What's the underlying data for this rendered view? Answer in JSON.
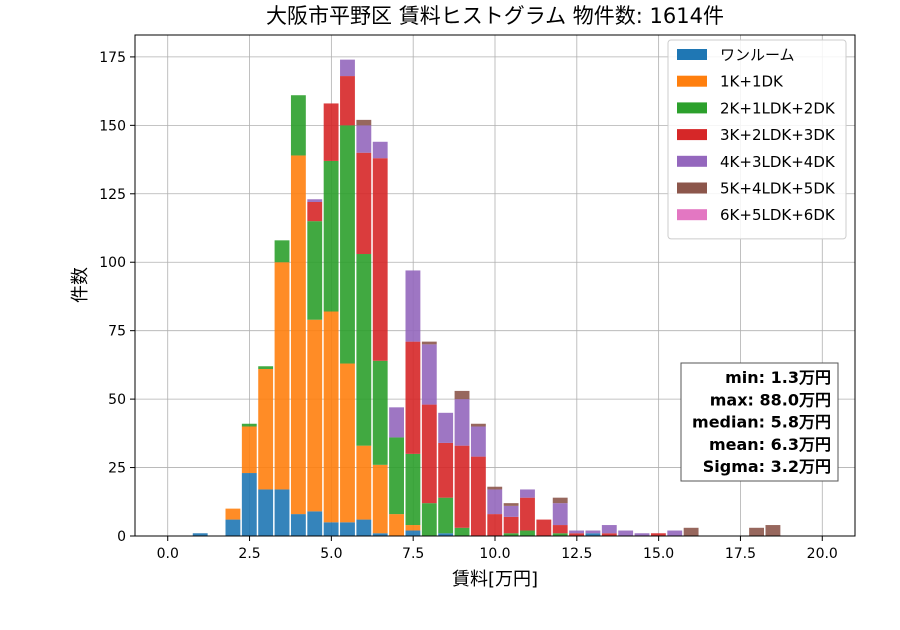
{
  "chart_data": {
    "type": "bar",
    "stacked": true,
    "title": "大阪市平野区 賃料ヒストグラム  物件数: 1614件",
    "xlabel": "賃料[万円]",
    "ylabel": "件数",
    "xlim": [
      -1.0,
      21.0
    ],
    "ylim": [
      0,
      183
    ],
    "xticks": [
      "0.0",
      "2.5",
      "5.0",
      "7.5",
      "10.0",
      "12.5",
      "15.0",
      "17.5",
      "20.0"
    ],
    "xtick_values": [
      0,
      2.5,
      5,
      7.5,
      10,
      12.5,
      15,
      17.5,
      20
    ],
    "yticks": [
      "0",
      "25",
      "50",
      "75",
      "100",
      "125",
      "150",
      "175"
    ],
    "ytick_values": [
      0,
      25,
      50,
      75,
      100,
      125,
      150,
      175
    ],
    "grid": true,
    "legend_position": "top-right",
    "bin_width": 0.5,
    "bin_starts": [
      0.75,
      1.25,
      1.75,
      2.25,
      2.75,
      3.25,
      3.75,
      4.25,
      4.75,
      5.25,
      5.75,
      6.25,
      6.75,
      7.25,
      7.75,
      8.25,
      8.75,
      9.25,
      9.75,
      10.25,
      10.75,
      11.25,
      11.75,
      12.25,
      12.75,
      13.25,
      13.75,
      14.25,
      14.75,
      15.25,
      15.75,
      16.25,
      16.75,
      17.25,
      17.75,
      18.25,
      18.75,
      19.25,
      19.75
    ],
    "series": [
      {
        "name": "ワンルーム",
        "color": "#1f77b4",
        "values": [
          1,
          0,
          6,
          23,
          17,
          17,
          8,
          9,
          5,
          5,
          6,
          1,
          0,
          2,
          0,
          1,
          0,
          0,
          0,
          0,
          0,
          0,
          0,
          0,
          1,
          0,
          0,
          0,
          0,
          0,
          0,
          0,
          0,
          0,
          0,
          0,
          0,
          0,
          0
        ]
      },
      {
        "name": "1K+1DK",
        "color": "#ff7f0e",
        "values": [
          0,
          0,
          4,
          17,
          44,
          83,
          131,
          70,
          77,
          58,
          27,
          25,
          8,
          2,
          0,
          0,
          0,
          0,
          0,
          0,
          0,
          0,
          0,
          0,
          0,
          0,
          0,
          0,
          0,
          0,
          0,
          0,
          0,
          0,
          0,
          0,
          0,
          0,
          0
        ]
      },
      {
        "name": "2K+1LDK+2DK",
        "color": "#2ca02c",
        "values": [
          0,
          0,
          0,
          1,
          1,
          8,
          22,
          36,
          55,
          87,
          70,
          38,
          28,
          26,
          12,
          13,
          3,
          0,
          0,
          1,
          2,
          0,
          1,
          0,
          0,
          0,
          0,
          0,
          0,
          0,
          0,
          0,
          0,
          0,
          0,
          0,
          0,
          0,
          0
        ]
      },
      {
        "name": "3K+2LDK+3DK",
        "color": "#d62728",
        "values": [
          0,
          0,
          0,
          0,
          0,
          0,
          0,
          7,
          21,
          18,
          37,
          74,
          0,
          41,
          36,
          20,
          30,
          29,
          8,
          6,
          12,
          6,
          3,
          1,
          0,
          1,
          0,
          0,
          1,
          0,
          0,
          0,
          0,
          0,
          0,
          0,
          0,
          0,
          0
        ]
      },
      {
        "name": "4K+3LDK+4DK",
        "color": "#9467bd",
        "values": [
          0,
          0,
          0,
          0,
          0,
          0,
          0,
          1,
          0,
          6,
          10,
          6,
          11,
          26,
          22,
          11,
          17,
          11,
          9,
          4,
          3,
          0,
          8,
          1,
          1,
          3,
          2,
          1,
          0,
          2,
          0,
          0,
          0,
          0,
          0,
          0,
          0,
          0,
          0
        ]
      },
      {
        "name": "5K+4LDK+5DK",
        "color": "#8c564b",
        "values": [
          0,
          0,
          0,
          0,
          0,
          0,
          0,
          0,
          0,
          0,
          2,
          0,
          0,
          0,
          1,
          0,
          3,
          1,
          1,
          1,
          0,
          0,
          2,
          0,
          0,
          0,
          0,
          0,
          0,
          0,
          3,
          0,
          0,
          0,
          3,
          4,
          0,
          0,
          0
        ]
      },
      {
        "name": "6K+5LDK+6DK",
        "color": "#e377c2",
        "values": [
          0,
          0,
          0,
          0,
          0,
          0,
          0,
          0,
          0,
          0,
          0,
          0,
          0,
          0,
          0,
          0,
          0,
          0,
          0,
          0,
          0,
          0,
          0,
          0,
          0,
          0,
          0,
          0,
          0,
          0,
          0,
          0,
          0,
          0,
          0,
          0,
          0,
          0,
          0
        ]
      }
    ],
    "stats": [
      "min: 1.3万円",
      "max: 88.0万円",
      "median: 5.8万円",
      "mean: 6.3万円",
      "Sigma: 3.2万円"
    ]
  }
}
